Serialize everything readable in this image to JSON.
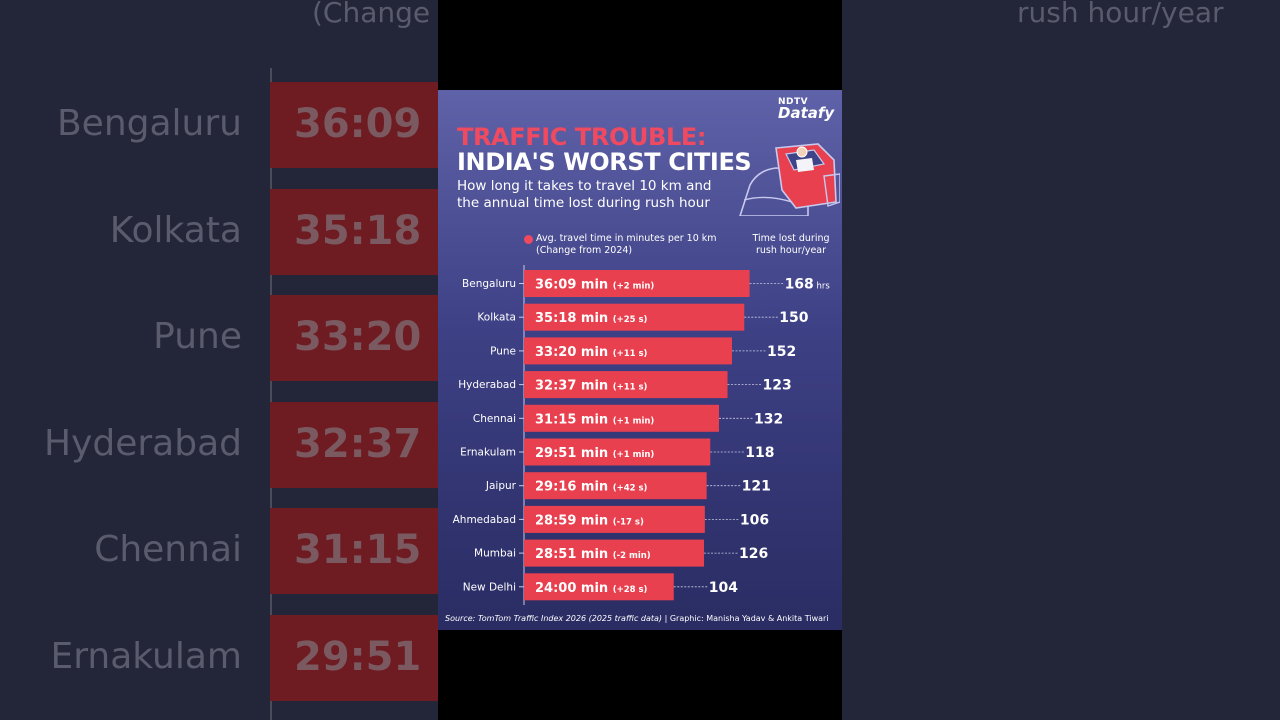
{
  "header": {
    "logo_top": "NDTV",
    "logo_bottom": "Datafy",
    "title_line1": "TRAFFIC TROUBLE:",
    "title_line2": "INDIA'S WORST CITIES",
    "subtitle": "How long it takes to travel 10 km and the annual time lost during rush hour"
  },
  "legend": {
    "left": "Avg. travel time in minutes per 10 km (Change from 2024)",
    "right": "Time lost during rush hour/year"
  },
  "footer": {
    "source_prefix": "Source: ",
    "source_name": "TomTom Traffic Index 2026 (2025 traffic data)",
    "credit": " | Graphic: Manisha Yadav & Ankita Tiwari"
  },
  "background": {
    "top_left_fragment": "(Change",
    "top_right_fragment": "rush hour/year",
    "cities": [
      "Bengaluru",
      "Kolkata",
      "Pune",
      "Hyderabad",
      "Chennai",
      "Ernakulam"
    ],
    "bar_labels": [
      "36:09 m",
      "35:18 m",
      "33:20 m",
      "32:37 m",
      "31:15 m",
      "29:51 m"
    ],
    "values": [
      "168",
      "150",
      "152",
      "123",
      "132",
      "118"
    ],
    "unit": "hrs"
  },
  "chart_data": {
    "type": "bar",
    "orientation": "horizontal",
    "categories": [
      "Bengaluru",
      "Kolkata",
      "Pune",
      "Hyderabad",
      "Chennai",
      "Ernakulam",
      "Jaipur",
      "Ahmedabad",
      "Mumbai",
      "New Delhi"
    ],
    "series": [
      {
        "name": "Avg. travel time in minutes per 10 km",
        "values": [
          36.15,
          35.3,
          33.333,
          32.617,
          31.25,
          29.85,
          29.267,
          28.983,
          28.85,
          24.0
        ],
        "labels": [
          "36:09 min",
          "35:18 min",
          "33:20 min",
          "32:37 min",
          "31:15 min",
          "29:51 min",
          "29:16 min",
          "28:59 min",
          "28:51 min",
          "24:00 min"
        ],
        "change_labels": [
          "(+2 min)",
          "(+25 s)",
          "(+11 s)",
          "(+11 s)",
          "(+1 min)",
          "(+1 min)",
          "(+42 s)",
          "(-17 s)",
          "(-2 min)",
          "(+28 s)"
        ]
      },
      {
        "name": "Time lost during rush hour/year",
        "values": [
          168,
          150,
          152,
          123,
          132,
          118,
          121,
          106,
          126,
          104
        ],
        "unit": "hrs"
      }
    ],
    "xlim": [
      0,
      37.5
    ],
    "colors": {
      "bar": "#e8404f",
      "text": "#ffffff",
      "dash": "#c7c9e6"
    }
  }
}
